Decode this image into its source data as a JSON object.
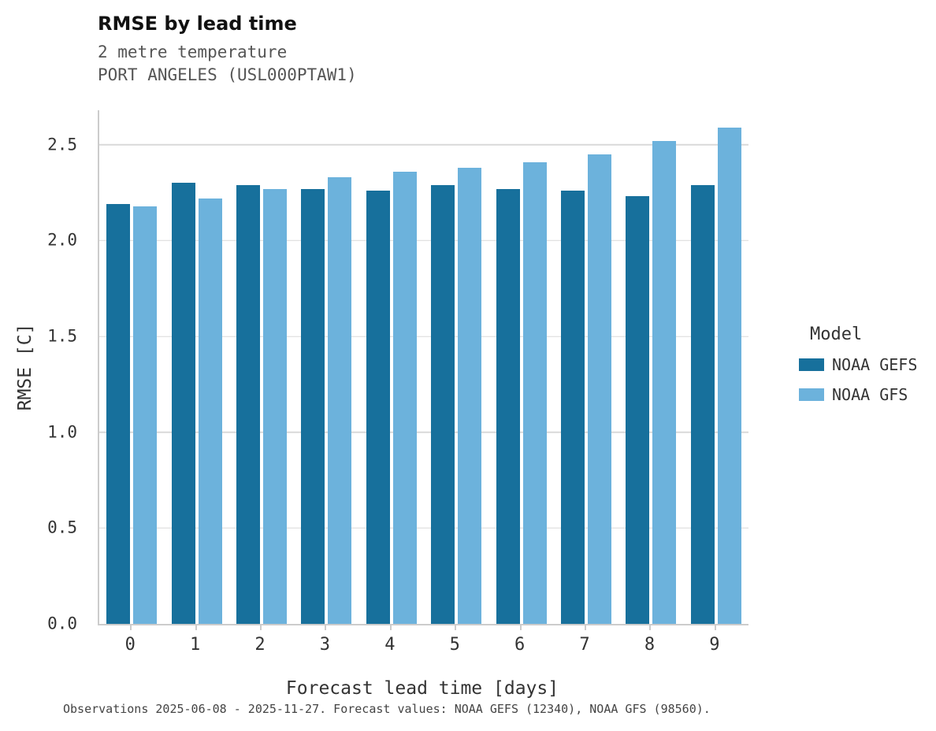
{
  "header": {
    "title": "RMSE by lead time",
    "subtitle1": "2 metre temperature",
    "subtitle2": "PORT ANGELES (USL000PTAW1)"
  },
  "legend": {
    "title": "Model",
    "entries": [
      {
        "label": "NOAA GEFS",
        "color": "#17709c"
      },
      {
        "label": "NOAA GFS",
        "color": "#6cb2dc"
      }
    ]
  },
  "footer": "Observations 2025-06-08 - 2025-11-27. Forecast values: NOAA GEFS (12340), NOAA GFS (98560).",
  "chart_data": {
    "type": "bar",
    "title": "RMSE by lead time",
    "subtitle": "2 metre temperature — PORT ANGELES (USL000PTAW1)",
    "xlabel": "Forecast lead time [days]",
    "ylabel": "RMSE [C]",
    "categories": [
      0,
      1,
      2,
      3,
      4,
      5,
      6,
      7,
      8,
      9
    ],
    "series": [
      {
        "name": "NOAA GEFS",
        "color": "#17709c",
        "values": [
          2.19,
          2.3,
          2.29,
          2.27,
          2.26,
          2.29,
          2.27,
          2.26,
          2.23,
          2.29
        ]
      },
      {
        "name": "NOAA GFS",
        "color": "#6cb2dc",
        "values": [
          2.18,
          2.22,
          2.27,
          2.33,
          2.36,
          2.38,
          2.41,
          2.45,
          2.52,
          2.59
        ]
      }
    ],
    "ylim": [
      0,
      2.68
    ],
    "yticks": [
      0.0,
      0.5,
      1.0,
      1.5,
      2.0,
      2.5
    ],
    "grid": "horizontal",
    "legend_position": "right"
  }
}
